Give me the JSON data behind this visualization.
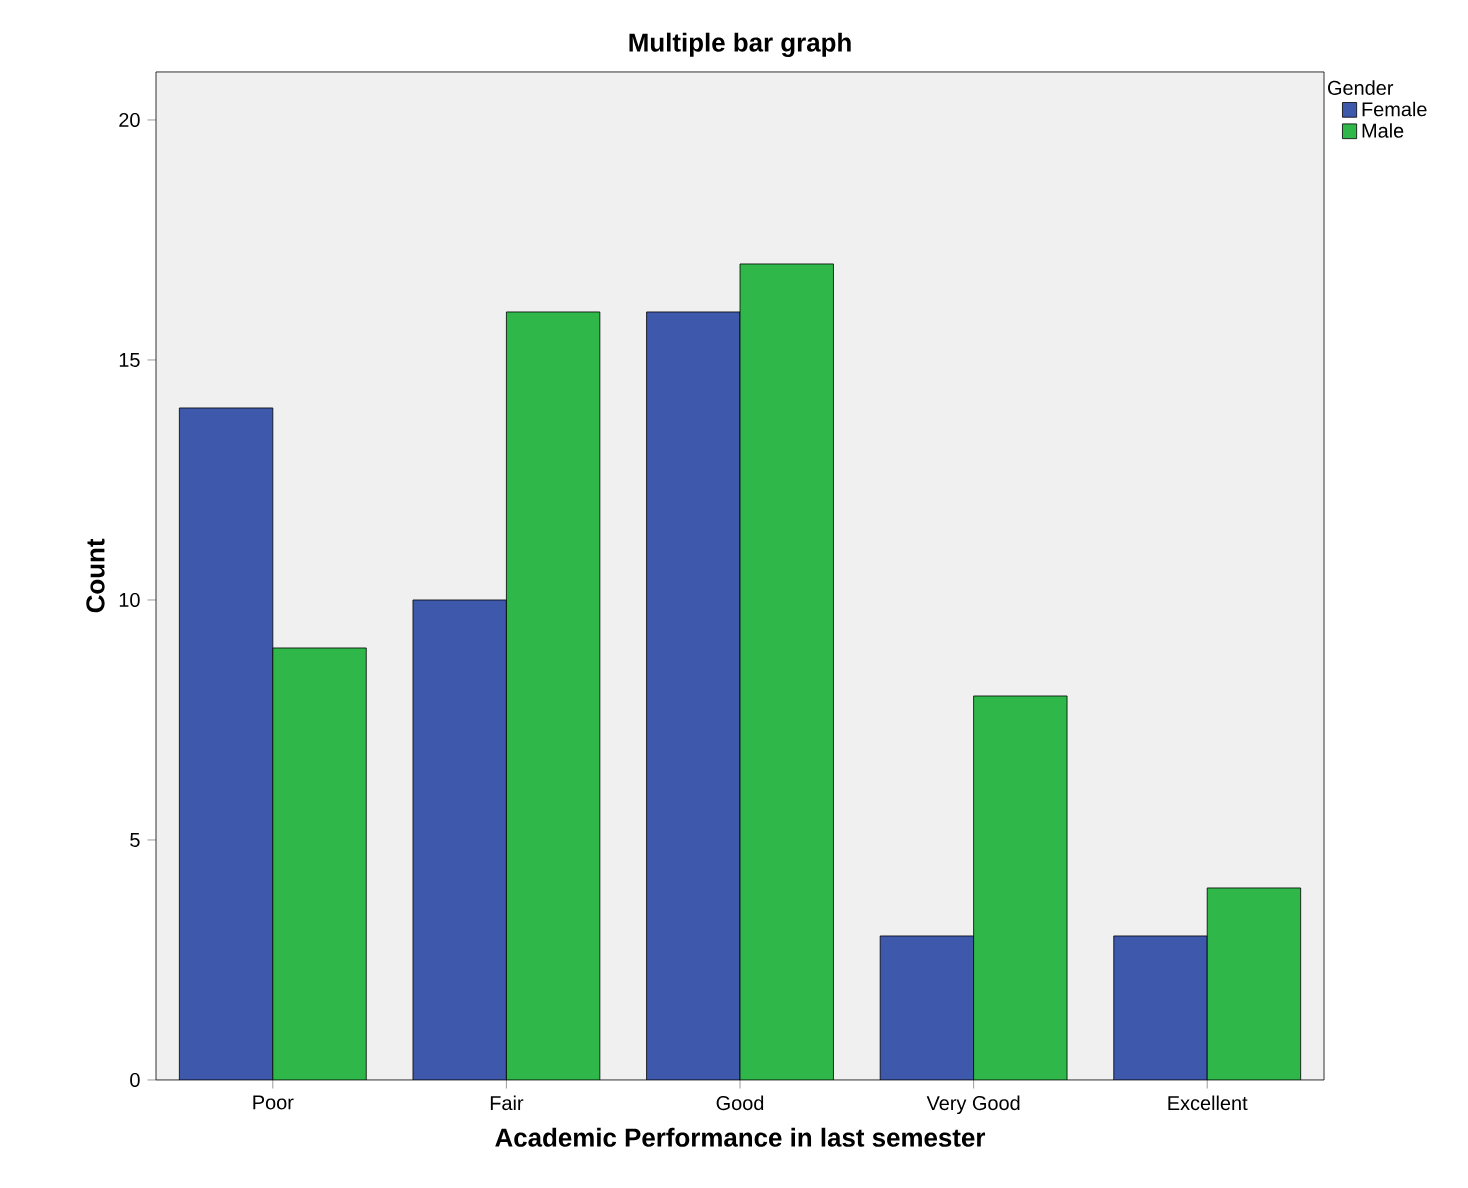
{
  "chart_data": {
    "type": "bar",
    "title": "Multiple bar graph",
    "xlabel": "Academic Performance in last semester",
    "ylabel": "Count",
    "legend_title": "Gender",
    "categories": [
      "Poor",
      "Fair",
      "Good",
      "Very Good",
      "Excellent"
    ],
    "series": [
      {
        "name": "Female",
        "color": "#3e58ac",
        "values": [
          14,
          10,
          16,
          3,
          3
        ]
      },
      {
        "name": "Male",
        "color": "#2fb849",
        "values": [
          9,
          16,
          17,
          8,
          4
        ]
      }
    ],
    "ylim": [
      0,
      21
    ],
    "yticks": [
      0,
      5,
      10,
      15,
      20
    ],
    "legend": "top right"
  }
}
